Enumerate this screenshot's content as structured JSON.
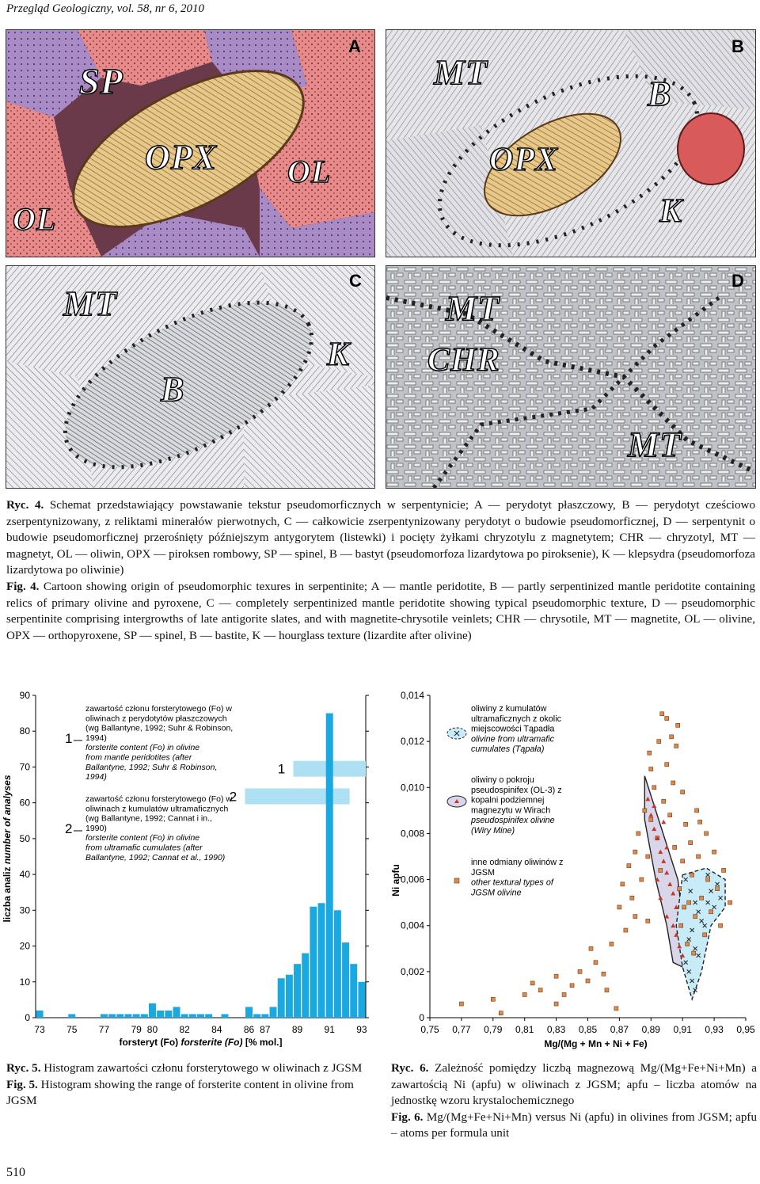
{
  "header": {
    "journal": "Przegląd Geologiczny, vol. 58, nr 6, 2010"
  },
  "fig4": {
    "panels": [
      {
        "tag": "A",
        "labels": [
          "SP",
          "OPX",
          "OL",
          "OL"
        ]
      },
      {
        "tag": "B",
        "labels": [
          "MT",
          "B",
          "OPX",
          "K"
        ]
      },
      {
        "tag": "C",
        "labels": [
          "MT",
          "K",
          "B"
        ]
      },
      {
        "tag": "D",
        "labels": [
          "MT",
          "CHR",
          "MT"
        ]
      }
    ],
    "caption_pl": {
      "label": "Ryc. 4.",
      "text": "Schemat przedstawiający powstawanie tekstur pseudomorficznych w serpentynicie; A — perydotyt płaszczowy, B — perydotyt cześciowo zserpentynizowany, z reliktami minerałów pierwotnych, C — całkowicie zserpentynizowany perydotyt o budowie pseudomorficznej, D — serpentynit o budowie pseudomorficznej przerośnięty późniejszym antygorytem (listewki) i pocięty żyłkami chryzotylu z magnetytem; CHR — chryzotyl, MT — magnetyt, OL — oliwin, OPX — piroksen rombowy, SP — spinel, B — bastyt (pseudomorfoza lizardytowa po piroksenie), K — klepsydra (pseudomorfoza lizardytowa po oliwinie)"
    },
    "caption_en": {
      "label": "Fig. 4.",
      "text": "Cartoon showing origin of pseudomorphic texures in serpentinite; A — mantle peridotite, B — partly serpentinized mantle peridotite containing relics of primary olivine and pyroxene, C — completely serpentinized mantle peridotite showing typical pseudomorphic texture, D — pseudomorphic serpentinite comprising intergrowths of late antigorite slates, and with magnetite-chrysotile veinlets; CHR — chrysotile, MT — magnetite, OL — olivine, OPX — orthopyroxene, SP — spinel, B — bastite, K — hourglass texture (lizardite after olivine)"
    }
  },
  "fig5": {
    "chart_data": {
      "type": "bar",
      "ylabel_pl": "liczba analiz",
      "ylabel_en": "number of analyses",
      "xlabel_pl": "forsteryt (Fo)",
      "xlabel_en": "forsterite (Fo)",
      "xlabel_unit": "[% mol.]",
      "ylim": [
        0,
        90
      ],
      "yticks": [
        "0",
        "10",
        "20",
        "30",
        "40",
        "50",
        "60",
        "70",
        "80",
        "90"
      ],
      "xticks": [
        "73",
        "75",
        "77",
        "79",
        "80",
        "82",
        "84",
        "86",
        "87",
        "89",
        "91",
        "93"
      ],
      "bins": [
        73.0,
        73.5,
        74.0,
        74.5,
        75.0,
        75.5,
        76.0,
        76.5,
        77.0,
        77.5,
        78.0,
        78.5,
        79.0,
        79.5,
        80.0,
        80.5,
        81.0,
        81.5,
        82.0,
        82.5,
        83.0,
        83.5,
        84.0,
        84.5,
        85.0,
        85.5,
        86.0,
        86.5,
        87.0,
        87.5,
        88.0,
        88.5,
        89.0,
        89.5,
        90.0,
        90.5,
        91.0,
        91.5,
        92.0,
        92.5,
        93.0
      ],
      "values": [
        2,
        0,
        0,
        0,
        1,
        0,
        0,
        0,
        1,
        1,
        1,
        1,
        1,
        1,
        4,
        2,
        2,
        3,
        1,
        1,
        1,
        1,
        0,
        1,
        0,
        0,
        3,
        1,
        1,
        3,
        11,
        12,
        15,
        18,
        31,
        32,
        85,
        30,
        21,
        15,
        10
      ],
      "ranges": [
        {
          "id": "1",
          "fo": [
            89.0,
            93.0
          ]
        },
        {
          "id": "2",
          "fo": [
            86.0,
            92.0
          ]
        }
      ],
      "legend": [
        {
          "number": "1",
          "pl": "zawartość członu forsterytowego (Fo) w oliwinach z perydotytów płaszczowych (wg Ballantyne, 1992; Suhr & Robinson, 1994)",
          "en": "forsterite content (Fo) in olivine from mantle peridotites (after Ballantyne, 1992; Suhr & Robinson, 1994)"
        },
        {
          "number": "2",
          "pl": "zawartość członu forsterytowego (Fo) w oliwinach z kumulatów ultramaficznych (wg Ballantyne, 1992; Cannat i in., 1990)",
          "en": "forsterite content (Fo) in olivine from ultramafic cumulates (after Ballantyne, 1992; Cannat et al., 1990)"
        }
      ]
    },
    "caption_pl": {
      "label": "Ryc. 5.",
      "text": "Histogram zawartości członu forsterytowego w oliwinach z JGSM"
    },
    "caption_en": {
      "label": "Fig. 5.",
      "text": "Histogram showing the range of forsterite content in olivine from JGSM"
    }
  },
  "fig6": {
    "chart_data": {
      "type": "scatter",
      "ylabel": "Ni apfu",
      "xlabel": "Mg/(Mg + Mn + Ni + Fe)",
      "xlim": [
        0.75,
        0.95
      ],
      "ylim": [
        0,
        0.014
      ],
      "xticks": [
        "0,75",
        "0,77",
        "0,79",
        "0,81",
        "0,83",
        "0,85",
        "0,87",
        "0,89",
        "0,91",
        "0,93",
        "0,95"
      ],
      "yticks": [
        "0",
        "0,002",
        "0,004",
        "0,006",
        "0,008",
        "0,010",
        "0,012",
        "0,014"
      ],
      "series": [
        {
          "name": "other textural types of JGSM olivine",
          "marker": "square",
          "color": "#e08a4a",
          "points": [
            [
              0.77,
              0.0006
            ],
            [
              0.79,
              0.0008
            ],
            [
              0.795,
              0.0002
            ],
            [
              0.81,
              0.001
            ],
            [
              0.815,
              0.0015
            ],
            [
              0.82,
              0.0012
            ],
            [
              0.83,
              0.0006
            ],
            [
              0.83,
              0.0018
            ],
            [
              0.835,
              0.001
            ],
            [
              0.84,
              0.0014
            ],
            [
              0.845,
              0.002
            ],
            [
              0.85,
              0.0016
            ],
            [
              0.852,
              0.003
            ],
            [
              0.855,
              0.0024
            ],
            [
              0.86,
              0.0019
            ],
            [
              0.862,
              0.0012
            ],
            [
              0.865,
              0.0032
            ],
            [
              0.868,
              0.0004
            ],
            [
              0.87,
              0.0048
            ],
            [
              0.872,
              0.0058
            ],
            [
              0.874,
              0.0038
            ],
            [
              0.876,
              0.0066
            ],
            [
              0.878,
              0.0052
            ],
            [
              0.88,
              0.0044
            ],
            [
              0.88,
              0.0072
            ],
            [
              0.882,
              0.008
            ],
            [
              0.884,
              0.006
            ],
            [
              0.886,
              0.009
            ],
            [
              0.888,
              0.0042
            ],
            [
              0.888,
              0.007
            ],
            [
              0.89,
              0.0086
            ],
            [
              0.89,
              0.0108
            ],
            [
              0.892,
              0.01
            ],
            [
              0.894,
              0.0078
            ],
            [
              0.895,
              0.012
            ],
            [
              0.896,
              0.0064
            ],
            [
              0.898,
              0.0094
            ],
            [
              0.9,
              0.011
            ],
            [
              0.9,
              0.013
            ],
            [
              0.902,
              0.0088
            ],
            [
              0.904,
              0.0102
            ],
            [
              0.905,
              0.0074
            ],
            [
              0.906,
              0.0118
            ],
            [
              0.908,
              0.0056
            ],
            [
              0.91,
              0.0098
            ],
            [
              0.91,
              0.0068
            ],
            [
              0.912,
              0.0084
            ],
            [
              0.914,
              0.005
            ],
            [
              0.915,
              0.0076
            ],
            [
              0.916,
              0.0062
            ],
            [
              0.918,
              0.0044
            ],
            [
              0.92,
              0.007
            ],
            [
              0.922,
              0.0052
            ],
            [
              0.924,
              0.0036
            ],
            [
              0.925,
              0.008
            ],
            [
              0.926,
              0.006
            ],
            [
              0.928,
              0.0046
            ],
            [
              0.93,
              0.0072
            ],
            [
              0.932,
              0.0056
            ],
            [
              0.934,
              0.004
            ],
            [
              0.936,
              0.0064
            ],
            [
              0.94,
              0.005
            ],
            [
              0.903,
              0.0122
            ],
            [
              0.897,
              0.0132
            ],
            [
              0.907,
              0.0127
            ],
            [
              0.889,
              0.0115
            ],
            [
              0.919,
              0.009
            ],
            [
              0.921,
              0.0085
            ],
            [
              0.911,
              0.0048
            ],
            [
              0.913,
              0.0032
            ],
            [
              0.917,
              0.0028
            ],
            [
              0.909,
              0.004
            ]
          ]
        },
        {
          "name": "olivine from ultramafic cumulates (Tąpała)",
          "marker": "cross",
          "color": "#222",
          "points": [
            [
              0.912,
              0.006
            ],
            [
              0.915,
              0.0055
            ],
            [
              0.918,
              0.005
            ],
            [
              0.92,
              0.0046
            ],
            [
              0.922,
              0.0042
            ],
            [
              0.924,
              0.004
            ],
            [
              0.916,
              0.0038
            ],
            [
              0.914,
              0.0034
            ],
            [
              0.918,
              0.003
            ],
            [
              0.92,
              0.0027
            ],
            [
              0.912,
              0.0024
            ],
            [
              0.914,
              0.002
            ],
            [
              0.916,
              0.0016
            ],
            [
              0.918,
              0.0012
            ],
            [
              0.926,
              0.005
            ],
            [
              0.93,
              0.0048
            ],
            [
              0.928,
              0.0055
            ],
            [
              0.932,
              0.0058
            ],
            [
              0.926,
              0.0062
            ],
            [
              0.934,
              0.0052
            ]
          ]
        },
        {
          "name": "olivine from pseudospinifex (Wiry Mine)",
          "marker": "triangle",
          "color": "#c0392b",
          "points": [
            [
              0.888,
              0.0095
            ],
            [
              0.89,
              0.0088
            ],
            [
              0.892,
              0.0082
            ],
            [
              0.894,
              0.0078
            ],
            [
              0.896,
              0.0072
            ],
            [
              0.898,
              0.0068
            ],
            [
              0.9,
              0.0063
            ],
            [
              0.902,
              0.0058
            ],
            [
              0.904,
              0.0054
            ],
            [
              0.906,
              0.0048
            ],
            [
              0.9,
              0.0044
            ],
            [
              0.904,
              0.004
            ],
            [
              0.906,
              0.0036
            ],
            [
              0.908,
              0.0031
            ],
            [
              0.91,
              0.0027
            ],
            [
              0.896,
              0.0052
            ],
            [
              0.894,
              0.006
            ],
            [
              0.9,
              0.0074
            ],
            [
              0.898,
              0.0085
            ],
            [
              0.892,
              0.0092
            ]
          ]
        }
      ],
      "legend": [
        {
          "pl": "oliwiny z kumulatów ultramaficznych z okolic miejscowości Tąpadła",
          "en": "olivine from ultramafic cumulates (Tąpała)"
        },
        {
          "pl": "oliwiny o pokroju pseudospinifex (OL-3) z kopalni podziemnej magnezytu w Wirach",
          "en": "pseudospinifex olivine (Wiry Mine)"
        },
        {
          "pl": "inne odmiany oliwinów z JGSM",
          "en": "other textural types of JGSM olivine"
        }
      ]
    },
    "caption_pl": {
      "label": "Ryc. 6.",
      "text": "Zależność pomiędzy liczbą magnezową Mg/(Mg+Fe+Ni+Mn) a zawartością Ni (apfu) w oliwinach z JGSM; apfu – liczba atomów na jednostkę wzoru krystalochemicznego"
    },
    "caption_en": {
      "label": "Fig. 6.",
      "text": "Mg/(Mg+Fe+Ni+Mn) versus Ni (apfu) in olivines from JGSM; apfu – atoms per formula unit"
    }
  },
  "page": {
    "number": "510"
  }
}
